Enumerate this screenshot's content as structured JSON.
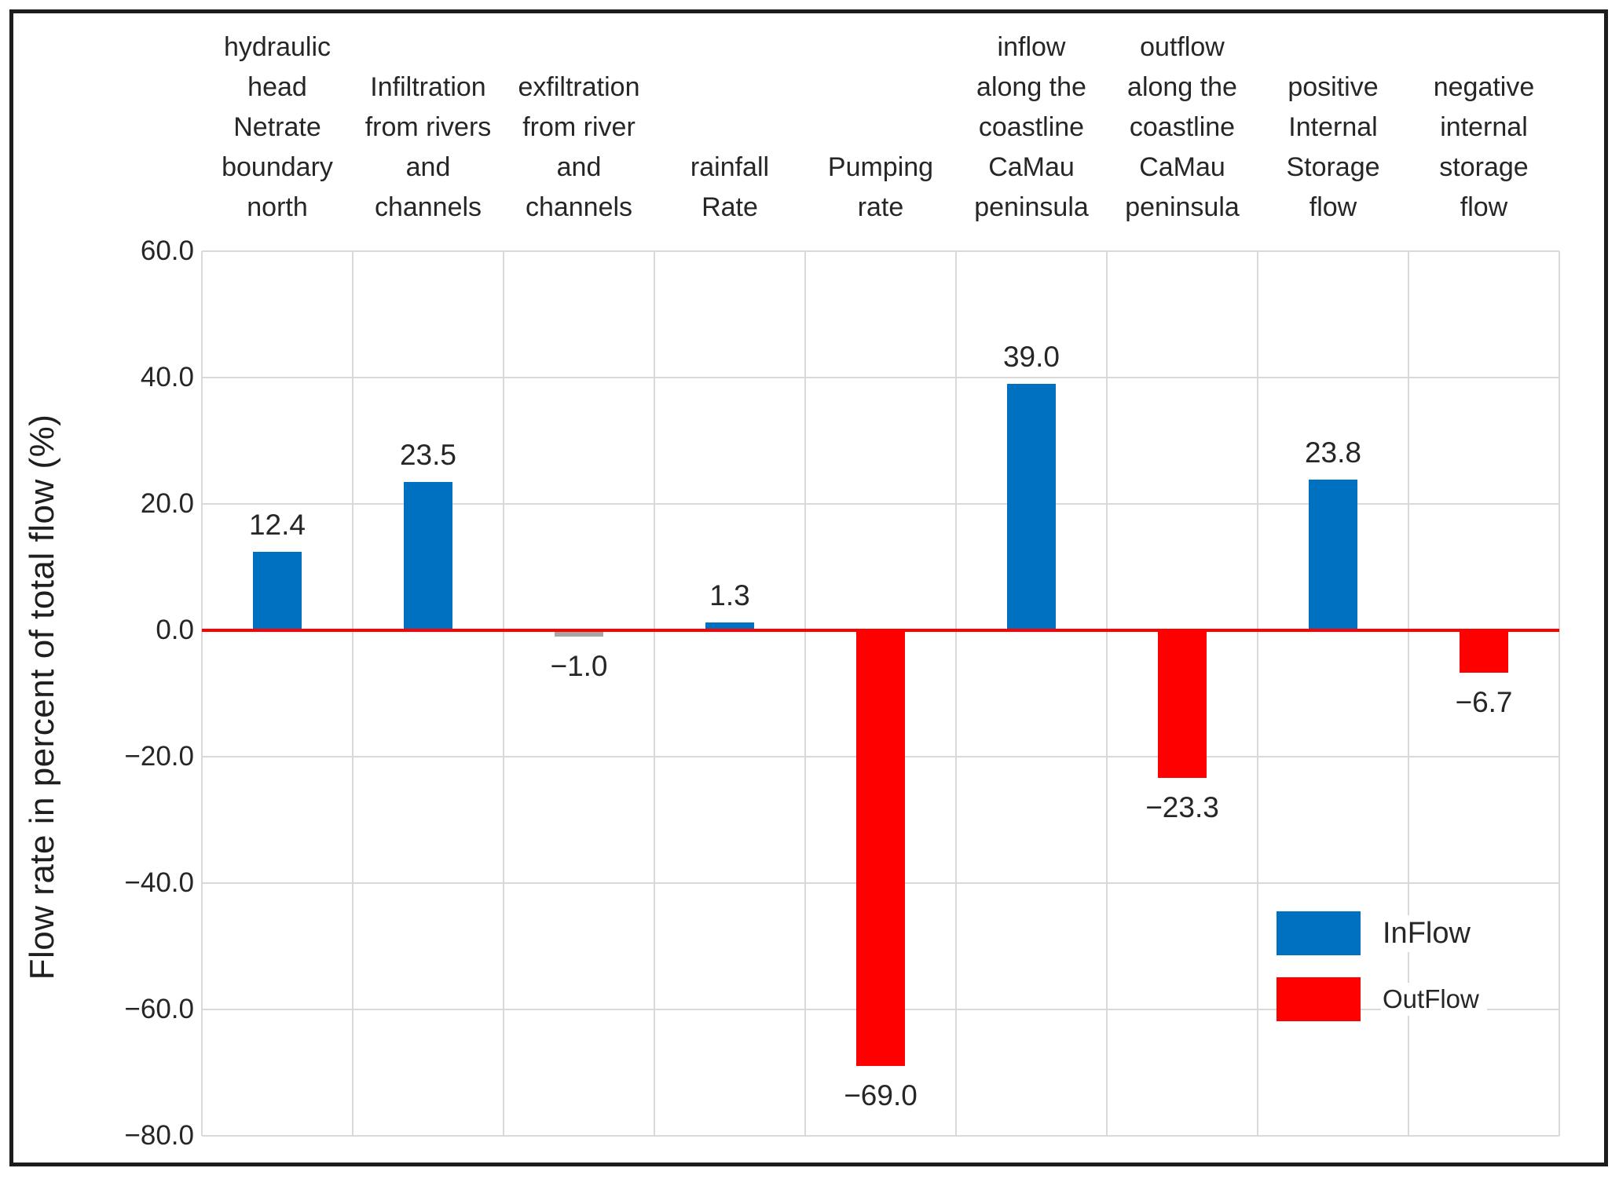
{
  "chart_data": {
    "type": "bar",
    "title": "",
    "ylabel": "Flow rate in percent of total flow (%)",
    "xlabel": "",
    "ylim": [
      -80,
      60
    ],
    "grid": true,
    "zero_line": true,
    "yticks": [
      {
        "value": 60,
        "label": "60.0"
      },
      {
        "value": 40,
        "label": "40.0"
      },
      {
        "value": 20,
        "label": "20.0"
      },
      {
        "value": 0,
        "label": "0.0"
      },
      {
        "value": -20,
        "label": "−20.0"
      },
      {
        "value": -40,
        "label": "−40.0"
      },
      {
        "value": -60,
        "label": "−60.0"
      },
      {
        "value": -80,
        "label": "−80.0"
      }
    ],
    "categories": [
      {
        "label": "hydraulic head Netrate boundary north",
        "lines": [
          "hydraulic",
          "head",
          "Netrate",
          "boundary",
          "north"
        ]
      },
      {
        "label": "Infiltration from rivers and channels",
        "lines": [
          "Infiltration",
          "from rivers",
          "and",
          "channels"
        ]
      },
      {
        "label": "exfiltration from river and channels",
        "lines": [
          "exfiltration",
          "from river",
          "and",
          "channels"
        ]
      },
      {
        "label": "rainfall Rate",
        "lines": [
          "rainfall",
          "Rate"
        ]
      },
      {
        "label": "Pumping rate",
        "lines": [
          "Pumping",
          "rate"
        ]
      },
      {
        "label": "inflow along the coastline CaMau peninsula",
        "lines": [
          "inflow",
          "along the",
          "coastline",
          "CaMau",
          "peninsula"
        ]
      },
      {
        "label": "outflow along the coastline CaMau peninsula",
        "lines": [
          "outflow",
          "along the",
          "coastline",
          "CaMau",
          "peninsula"
        ]
      },
      {
        "label": "positive Internal Storage flow",
        "lines": [
          "positive",
          "Internal",
          "Storage",
          "flow"
        ]
      },
      {
        "label": "negative internal storage flow",
        "lines": [
          "negative",
          "internal",
          "storage",
          "flow"
        ]
      }
    ],
    "values": [
      12.4,
      23.5,
      -1.0,
      1.3,
      -69.0,
      39.0,
      -23.3,
      23.8,
      -6.7
    ],
    "bar_labels": [
      "12.4",
      "23.5",
      "−1.0",
      "1.3",
      "−69.0",
      "39.0",
      "−23.3",
      "23.8",
      "−6.7"
    ],
    "bar_series": [
      "inflow",
      "inflow",
      "neutral",
      "inflow",
      "outflow",
      "inflow",
      "outflow",
      "inflow",
      "outflow"
    ],
    "colors": {
      "inflow": "#0070C0",
      "outflow": "#FF0000",
      "neutral": "#A6A6A6",
      "zero_line": "#FF0000",
      "gridline": "#D9D9D9"
    },
    "legend": {
      "position": "inside-bottom-right",
      "items": [
        {
          "label": "InFlow",
          "series": "inflow"
        },
        {
          "label": "OutFlow",
          "series": "outflow"
        }
      ]
    }
  }
}
